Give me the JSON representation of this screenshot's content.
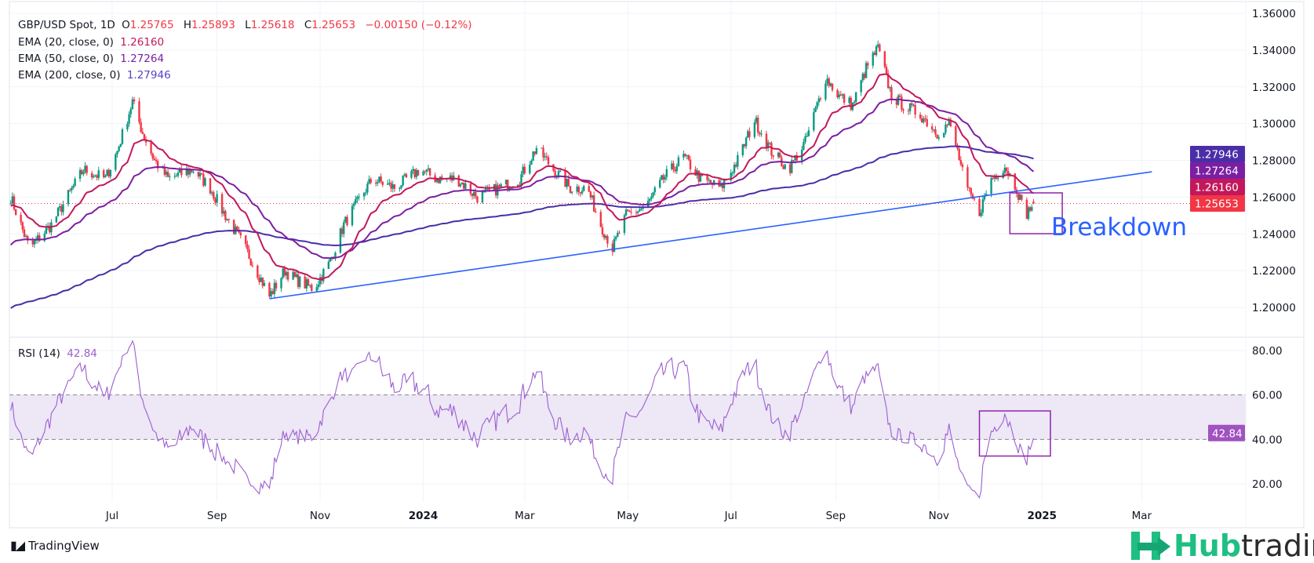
{
  "legend": {
    "symbol": "GBP/USD Spot, 1D",
    "o_label": "O",
    "o_value": "1.25765",
    "h_label": "H",
    "h_value": "1.25893",
    "l_label": "L",
    "l_value": "1.25618",
    "c_label": "C",
    "c_value": "1.25653",
    "change": "−0.00150 (−0.12%)",
    "ema20_label": "EMA (20, close, 0)",
    "ema20_value": "1.26160",
    "ema50_label": "EMA (50, close, 0)",
    "ema50_value": "1.27264",
    "ema200_label": "EMA (200, close, 0)",
    "ema200_value": "1.27946",
    "rsi_label": "RSI (14)",
    "rsi_value": "42.84"
  },
  "branding": {
    "tradingview": "TradingView",
    "hub_part1": "Hub",
    "hub_part2": "trading"
  },
  "chart_data": {
    "type": "candlestick",
    "title": "GBP/USD Spot, 1D",
    "price_axis": {
      "ylim": [
        1.19,
        1.36
      ],
      "ticks": [
        "1.36000",
        "1.34000",
        "1.32000",
        "1.30000",
        "1.28000",
        "1.26000",
        "1.24000",
        "1.22000",
        "1.20000"
      ]
    },
    "rsi_axis": {
      "ylim": [
        12,
        86
      ],
      "ticks": [
        "80.00",
        "60.00",
        "40.00",
        "20.00"
      ],
      "band": [
        40,
        60
      ]
    },
    "x_ticks": [
      {
        "label": "Jul",
        "date": "2023-07-01"
      },
      {
        "label": "Sep",
        "date": "2023-09-01"
      },
      {
        "label": "Nov",
        "date": "2023-11-01"
      },
      {
        "label": "2024",
        "date": "2024-01-01",
        "bold": true
      },
      {
        "label": "Mar",
        "date": "2024-03-01"
      },
      {
        "label": "May",
        "date": "2024-05-01"
      },
      {
        "label": "Jul",
        "date": "2024-07-01"
      },
      {
        "label": "Sep",
        "date": "2024-09-01"
      },
      {
        "label": "Nov",
        "date": "2024-11-01"
      },
      {
        "label": "2025",
        "date": "2025-01-01",
        "bold": true
      },
      {
        "label": "Mar",
        "date": "2025-03-01"
      }
    ],
    "grid": true,
    "approx_closes": [
      [
        "2023-05-02",
        1.26
      ],
      [
        "2023-05-13",
        1.232
      ],
      [
        "2023-05-26",
        1.245
      ],
      [
        "2023-06-14",
        1.275
      ],
      [
        "2023-06-27",
        1.27
      ],
      [
        "2023-07-04",
        1.285
      ],
      [
        "2023-07-13",
        1.312
      ],
      [
        "2023-07-19",
        1.295
      ],
      [
        "2023-07-26",
        1.28
      ],
      [
        "2023-08-03",
        1.27
      ],
      [
        "2023-08-18",
        1.275
      ],
      [
        "2023-08-28",
        1.265
      ],
      [
        "2023-09-04",
        1.253
      ],
      [
        "2023-09-16",
        1.235
      ],
      [
        "2023-09-24",
        1.221
      ],
      [
        "2023-10-02",
        1.206
      ],
      [
        "2023-10-11",
        1.22
      ],
      [
        "2023-10-18",
        1.215
      ],
      [
        "2023-10-28",
        1.21
      ],
      [
        "2023-11-07",
        1.225
      ],
      [
        "2023-11-15",
        1.245
      ],
      [
        "2023-11-25",
        1.26
      ],
      [
        "2023-12-02",
        1.27
      ],
      [
        "2023-12-15",
        1.265
      ],
      [
        "2023-12-30",
        1.275
      ],
      [
        "2024-01-09",
        1.27
      ],
      [
        "2024-01-21",
        1.27
      ],
      [
        "2024-02-02",
        1.26
      ],
      [
        "2024-02-15",
        1.265
      ],
      [
        "2024-02-27",
        1.27
      ],
      [
        "2024-03-08",
        1.287
      ],
      [
        "2024-03-18",
        1.275
      ],
      [
        "2024-03-28",
        1.265
      ],
      [
        "2024-04-07",
        1.265
      ],
      [
        "2024-04-15",
        1.245
      ],
      [
        "2024-04-22",
        1.232
      ],
      [
        "2024-04-30",
        1.25
      ],
      [
        "2024-05-12",
        1.255
      ],
      [
        "2024-05-22",
        1.27
      ],
      [
        "2024-06-03",
        1.282
      ],
      [
        "2024-06-13",
        1.27
      ],
      [
        "2024-06-25",
        1.265
      ],
      [
        "2024-07-05",
        1.28
      ],
      [
        "2024-07-15",
        1.302
      ],
      [
        "2024-07-25",
        1.285
      ],
      [
        "2024-08-04",
        1.275
      ],
      [
        "2024-08-14",
        1.29
      ],
      [
        "2024-08-21",
        1.31
      ],
      [
        "2024-08-26",
        1.325
      ],
      [
        "2024-09-03",
        1.315
      ],
      [
        "2024-09-11",
        1.31
      ],
      [
        "2024-09-19",
        1.33
      ],
      [
        "2024-09-26",
        1.341
      ],
      [
        "2024-10-04",
        1.315
      ],
      [
        "2024-10-11",
        1.31
      ],
      [
        "2024-10-21",
        1.305
      ],
      [
        "2024-10-31",
        1.295
      ],
      [
        "2024-11-07",
        1.3
      ],
      [
        "2024-11-12",
        1.285
      ],
      [
        "2024-11-17",
        1.265
      ],
      [
        "2024-11-25",
        1.252
      ],
      [
        "2024-12-02",
        1.27
      ],
      [
        "2024-12-10",
        1.277
      ],
      [
        "2024-12-17",
        1.265
      ],
      [
        "2024-12-22",
        1.25
      ],
      [
        "2024-12-27",
        1.25653
      ]
    ],
    "last_bar": {
      "open": 1.25765,
      "high": 1.25893,
      "low": 1.25618,
      "close": 1.25653
    },
    "indicators": {
      "ema20": {
        "last": 1.2616,
        "color": "#c2185b"
      },
      "ema50": {
        "last": 1.27264,
        "color": "#7b1fa2"
      },
      "ema200": {
        "last": 1.27946,
        "color": "#4a2ea8"
      },
      "rsi14": {
        "last": 42.84,
        "color": "#9c5fd0"
      }
    },
    "price_labels": [
      {
        "text": "1.27946",
        "color": "#4a2ea8"
      },
      {
        "text": "1.27264",
        "color": "#7b1fa2"
      },
      {
        "text": "1.26160",
        "color": "#c2185b"
      },
      {
        "text": "1.25653",
        "color": "#f23645"
      }
    ],
    "rsi_label": {
      "text": "42.84",
      "color": "#a052c0"
    },
    "trendline": {
      "from": [
        "2023-10-02",
        1.2047
      ],
      "to": [
        "2025-03-07",
        1.2738
      ],
      "color": "#2962ff"
    },
    "annotations": {
      "breakdown_text": "Breakdown",
      "price_box": {
        "from": "2024-12-13",
        "to": "2025-01-13",
        "high": 1.2623,
        "low": 1.2401,
        "color": "#8e24aa"
      },
      "rsi_box": {
        "from": "2024-11-25",
        "to": "2025-01-06",
        "high": 52.8,
        "low": 32.5,
        "color": "#8e24aa"
      }
    },
    "colors": {
      "up": "#089981",
      "down": "#f23645",
      "band": "#ede7f6"
    }
  }
}
